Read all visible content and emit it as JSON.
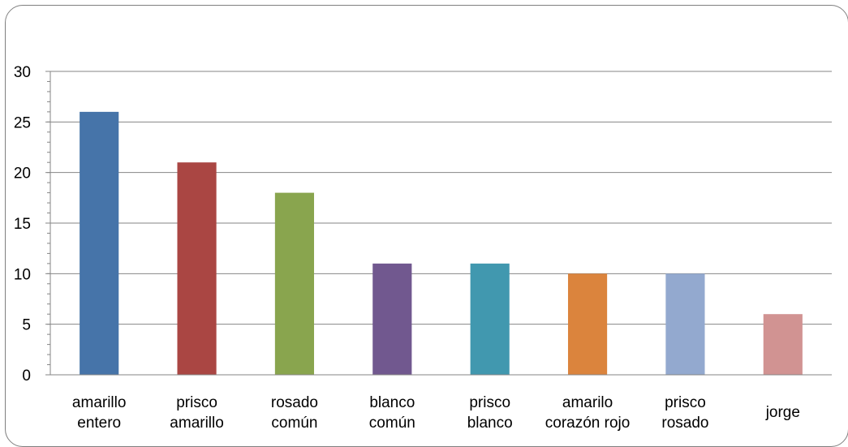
{
  "chart_data": {
    "type": "bar",
    "title": "",
    "xlabel": "",
    "ylabel": "",
    "ylim": [
      0,
      30
    ],
    "y_ticks": [
      "0",
      "5",
      "10",
      "15",
      "20",
      "25",
      "30"
    ],
    "grid": true,
    "legend": "none",
    "categories": [
      [
        "amarillo",
        "entero"
      ],
      [
        "prisco",
        "amarillo"
      ],
      [
        "rosado",
        "común"
      ],
      [
        "blanco",
        "común"
      ],
      [
        "prisco",
        "blanco"
      ],
      [
        "amarilo",
        "corazón rojo"
      ],
      [
        "prisco",
        "rosado"
      ],
      [
        "jorge"
      ]
    ],
    "values": [
      26,
      21,
      18,
      11,
      11,
      10,
      10,
      6
    ],
    "colors": [
      "#4674a9",
      "#aa4643",
      "#89a54e",
      "#71588f",
      "#4198af",
      "#db843d",
      "#93a9cf",
      "#d19392"
    ]
  }
}
